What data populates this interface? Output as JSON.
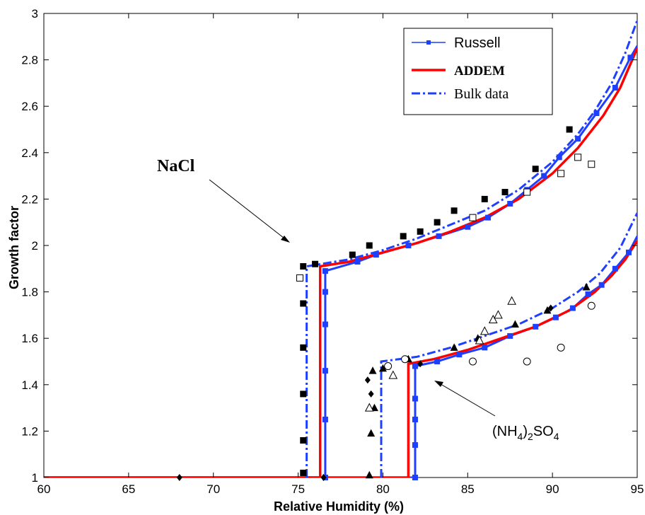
{
  "chart_data": {
    "type": "line",
    "xlabel": "Relative Humidity (%)",
    "ylabel": "Growth factor",
    "xlim": [
      60,
      95
    ],
    "ylim": [
      1,
      3
    ],
    "xticks": [
      60,
      65,
      70,
      75,
      80,
      85,
      90,
      95
    ],
    "yticks": [
      1,
      1.2,
      1.4,
      1.6,
      1.8,
      2,
      2.2,
      2.4,
      2.6,
      2.8,
      3
    ],
    "legend_position": "top-right",
    "grid": false,
    "legend": [
      {
        "label": "Russell",
        "color": "#1f3fff",
        "style": "solid-square-markers"
      },
      {
        "label": "ADDEM",
        "color": "#ff0000",
        "style": "solid-thick"
      },
      {
        "label": "Bulk data",
        "color": "#1f3fff",
        "style": "dash-dot"
      }
    ],
    "annotations": [
      {
        "text": "NaCl",
        "points_to": [
          75.3,
          1.92
        ]
      },
      {
        "text": "(NH4)2SO4",
        "base": "(NH",
        "sub1": "4",
        "mid": ")",
        "sub2": "2",
        "mid2": "SO",
        "sub3": "4",
        "points_to": [
          81.8,
          1.48
        ]
      }
    ],
    "series": [
      {
        "name": "Russell",
        "kind": "line-markers",
        "color": "#1f3fff",
        "points": [
          [
            60,
            1
          ],
          [
            76.6,
            1
          ],
          [
            76.6,
            1.25
          ],
          [
            76.6,
            1.46
          ],
          [
            76.6,
            1.66
          ],
          [
            76.6,
            1.8
          ],
          [
            76.6,
            1.89
          ],
          [
            78.5,
            1.93
          ],
          [
            79.6,
            1.96
          ],
          [
            81.5,
            2.0
          ],
          [
            83.3,
            2.04
          ],
          [
            85.0,
            2.08
          ],
          [
            86.2,
            2.12
          ],
          [
            87.5,
            2.18
          ],
          [
            88.5,
            2.24
          ],
          [
            89.5,
            2.3
          ],
          [
            90.4,
            2.38
          ],
          [
            91.5,
            2.46
          ],
          [
            92.6,
            2.57
          ],
          [
            93.7,
            2.68
          ],
          [
            94.6,
            2.81
          ],
          [
            95,
            2.86
          ]
        ]
      },
      {
        "name": "Russell",
        "kind": "line-markers",
        "color": "#1f3fff",
        "points": [
          [
            60,
            1
          ],
          [
            81.9,
            1
          ],
          [
            81.9,
            1.14
          ],
          [
            81.9,
            1.25
          ],
          [
            81.9,
            1.34
          ],
          [
            81.9,
            1.48
          ],
          [
            83.2,
            1.5
          ],
          [
            84.5,
            1.53
          ],
          [
            86.0,
            1.56
          ],
          [
            87.5,
            1.61
          ],
          [
            89.0,
            1.65
          ],
          [
            90.2,
            1.69
          ],
          [
            91.2,
            1.73
          ],
          [
            92.1,
            1.79
          ],
          [
            92.9,
            1.83
          ],
          [
            93.7,
            1.9
          ],
          [
            94.5,
            1.97
          ],
          [
            95,
            2.04
          ]
        ]
      },
      {
        "name": "ADDEM",
        "kind": "line",
        "color": "#ff0000",
        "points": [
          [
            60,
            1
          ],
          [
            76.3,
            1
          ],
          [
            76.3,
            1.91
          ],
          [
            78.0,
            1.93
          ],
          [
            80.0,
            1.97
          ],
          [
            82.0,
            2.01
          ],
          [
            84.0,
            2.06
          ],
          [
            86.0,
            2.12
          ],
          [
            88.0,
            2.2
          ],
          [
            90.0,
            2.31
          ],
          [
            91.5,
            2.42
          ],
          [
            93.0,
            2.56
          ],
          [
            94.0,
            2.68
          ],
          [
            95,
            2.85
          ]
        ]
      },
      {
        "name": "ADDEM",
        "kind": "line",
        "color": "#ff0000",
        "points": [
          [
            60,
            1
          ],
          [
            81.5,
            1
          ],
          [
            81.5,
            1.49
          ],
          [
            83.0,
            1.51
          ],
          [
            85.0,
            1.55
          ],
          [
            87.0,
            1.6
          ],
          [
            89.0,
            1.65
          ],
          [
            91.0,
            1.72
          ],
          [
            92.5,
            1.8
          ],
          [
            93.5,
            1.87
          ],
          [
            94.3,
            1.94
          ],
          [
            95,
            2.02
          ]
        ]
      },
      {
        "name": "Bulk data",
        "kind": "dashdot",
        "color": "#1f3fff",
        "points": [
          [
            75.5,
            1
          ],
          [
            75.5,
            1.91
          ],
          [
            78.0,
            1.94
          ],
          [
            80.0,
            1.98
          ],
          [
            82.0,
            2.03
          ],
          [
            84.0,
            2.09
          ],
          [
            86.0,
            2.15
          ],
          [
            88.0,
            2.24
          ],
          [
            90.0,
            2.36
          ],
          [
            91.5,
            2.48
          ],
          [
            92.5,
            2.58
          ],
          [
            93.5,
            2.7
          ],
          [
            94.3,
            2.83
          ],
          [
            95,
            2.97
          ]
        ]
      },
      {
        "name": "Bulk data",
        "kind": "dashdot",
        "color": "#1f3fff",
        "points": [
          [
            79.9,
            1
          ],
          [
            79.9,
            1.5
          ],
          [
            82.0,
            1.52
          ],
          [
            84.0,
            1.56
          ],
          [
            86.0,
            1.61
          ],
          [
            88.0,
            1.66
          ],
          [
            90.0,
            1.73
          ],
          [
            91.5,
            1.8
          ],
          [
            92.8,
            1.88
          ],
          [
            94.0,
            1.99
          ],
          [
            95,
            2.14
          ]
        ]
      },
      {
        "name": "",
        "kind": "scatter",
        "marker": "square-filled",
        "color": "#000000",
        "points": [
          [
            75.3,
            1.02
          ],
          [
            75.3,
            1.16
          ],
          [
            75.3,
            1.36
          ],
          [
            75.3,
            1.56
          ],
          [
            75.3,
            1.75
          ],
          [
            75.3,
            1.91
          ],
          [
            76.0,
            1.92
          ],
          [
            78.2,
            1.96
          ],
          [
            79.2,
            2.0
          ],
          [
            81.2,
            2.04
          ],
          [
            82.2,
            2.06
          ],
          [
            83.2,
            2.1
          ],
          [
            84.2,
            2.15
          ],
          [
            86.0,
            2.2
          ],
          [
            87.2,
            2.23
          ],
          [
            89.0,
            2.33
          ],
          [
            91.0,
            2.5
          ]
        ]
      },
      {
        "name": "",
        "kind": "scatter",
        "marker": "square-open",
        "color": "#000000",
        "points": [
          [
            75.1,
            1.86
          ],
          [
            85.3,
            2.12
          ],
          [
            88.5,
            2.23
          ],
          [
            90.5,
            2.31
          ],
          [
            91.5,
            2.38
          ],
          [
            92.3,
            2.35
          ]
        ]
      },
      {
        "name": "",
        "kind": "scatter",
        "marker": "triangle-filled",
        "color": "#000000",
        "points": [
          [
            79.2,
            1.01
          ],
          [
            79.3,
            1.19
          ],
          [
            79.5,
            1.3
          ],
          [
            79.4,
            1.46
          ],
          [
            80.0,
            1.47
          ],
          [
            81.5,
            1.51
          ],
          [
            84.2,
            1.56
          ],
          [
            85.6,
            1.6
          ],
          [
            87.8,
            1.66
          ],
          [
            89.7,
            1.72
          ],
          [
            92.0,
            1.82
          ]
        ]
      },
      {
        "name": "",
        "kind": "scatter",
        "marker": "triangle-open",
        "color": "#000000",
        "points": [
          [
            79.2,
            1.3
          ],
          [
            80.6,
            1.44
          ],
          [
            85.7,
            1.59
          ],
          [
            86.0,
            1.63
          ],
          [
            86.5,
            1.68
          ],
          [
            86.8,
            1.7
          ],
          [
            87.6,
            1.76
          ]
        ]
      },
      {
        "name": "",
        "kind": "scatter",
        "marker": "circle-open",
        "color": "#000000",
        "points": [
          [
            80.3,
            1.48
          ],
          [
            81.3,
            1.51
          ],
          [
            85.3,
            1.5
          ],
          [
            88.5,
            1.5
          ],
          [
            90.5,
            1.56
          ],
          [
            92.3,
            1.74
          ]
        ]
      },
      {
        "name": "",
        "kind": "scatter",
        "marker": "diamond-filled",
        "color": "#000000",
        "points": [
          [
            68.0,
            1.0
          ],
          [
            76.5,
            1.0
          ],
          [
            79.1,
            1.42
          ],
          [
            79.3,
            1.36
          ],
          [
            82.2,
            1.49
          ],
          [
            89.9,
            1.73
          ]
        ]
      }
    ]
  }
}
